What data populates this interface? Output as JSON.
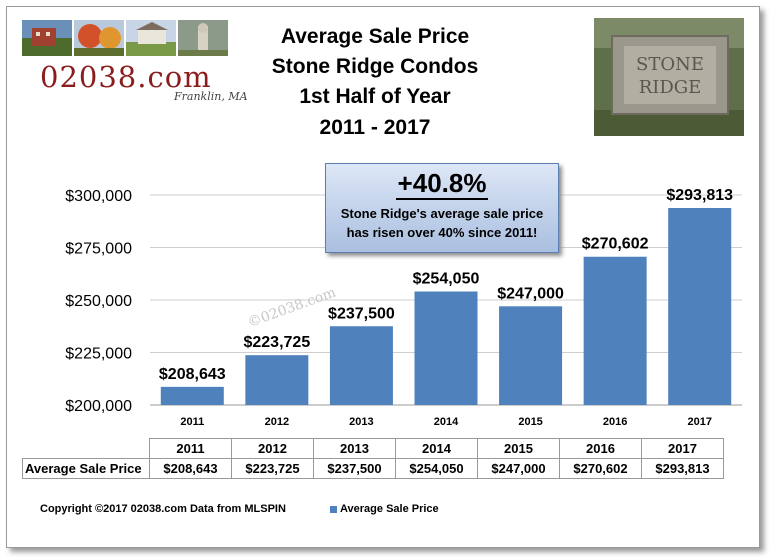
{
  "logo": {
    "text": "02038.com",
    "subtitle": "Franklin, MA"
  },
  "title_lines": [
    "Average Sale Price",
    "Stone Ridge Condos",
    "1st Half of Year",
    "2011 - 2017"
  ],
  "photo_sign": {
    "line1": "STONE",
    "line2": "RIDGE"
  },
  "callout": {
    "headline": "+40.8%",
    "body_line1": "Stone Ridge's average sale price",
    "body_line2": "has risen over 40% since 2011!"
  },
  "watermark": "©02038.com",
  "chart_data": {
    "type": "bar",
    "categories": [
      "2011",
      "2012",
      "2013",
      "2014",
      "2015",
      "2016",
      "2017"
    ],
    "series": [
      {
        "name": "Average Sale Price",
        "values": [
          208643,
          223725,
          237500,
          254050,
          247000,
          270602,
          293813
        ]
      }
    ],
    "value_labels": [
      "$208,643",
      "$223,725",
      "$237,500",
      "$254,050",
      "$247,000",
      "$270,602",
      "$293,813"
    ],
    "ylim": [
      200000,
      300000
    ],
    "yticks": [
      200000,
      225000,
      250000,
      275000,
      300000
    ],
    "ytick_labels": [
      "$200,000",
      "$225,000",
      "$250,000",
      "$275,000",
      "$300,000"
    ],
    "grid": true,
    "bar_color": "#4f81bd",
    "legend_position": "bottom"
  },
  "table": {
    "row_label": "Average Sale Price",
    "years": [
      "2011",
      "2012",
      "2013",
      "2014",
      "2015",
      "2016",
      "2017"
    ],
    "values": [
      "$208,643",
      "$223,725",
      "$237,500",
      "$254,050",
      "$247,000",
      "$270,602",
      "$293,813"
    ]
  },
  "footer": {
    "copyright": "Copyright ©2017 02038.com  Data from MLSPIN",
    "legend_label": "Average Sale  Price"
  }
}
